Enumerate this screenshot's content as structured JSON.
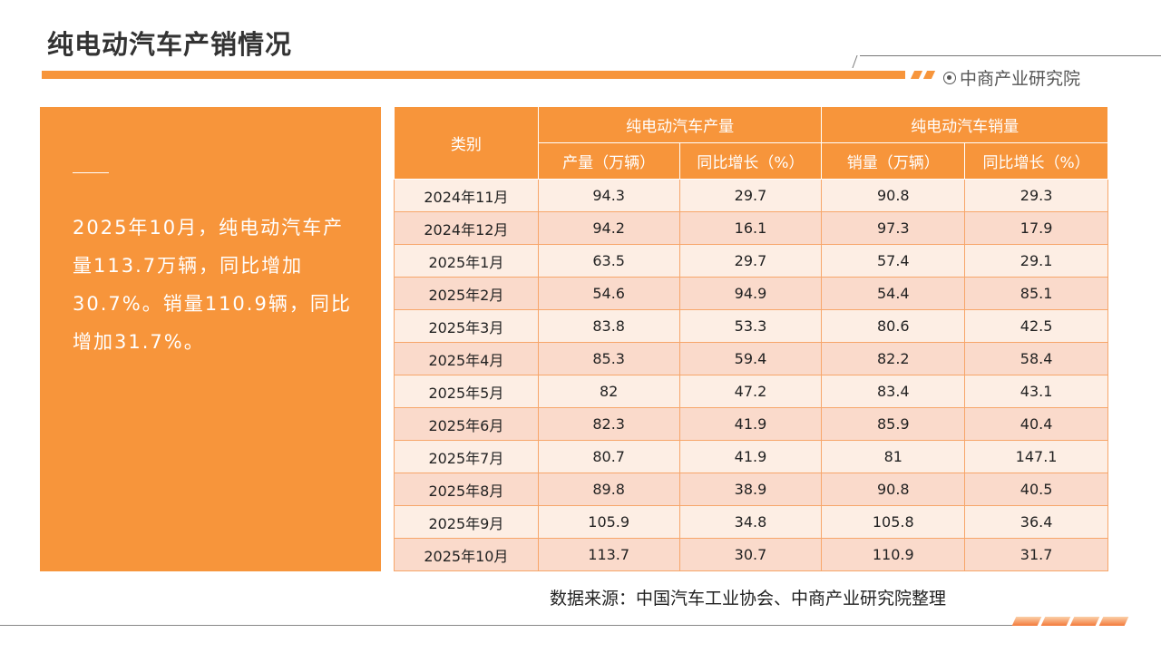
{
  "header": {
    "title": "纯电动汽车产销情况",
    "brand": "中商产业研究院"
  },
  "summary": {
    "text": "2025年10月，纯电动汽车产量113.7万辆，同比增加30.7%。销量110.9辆，同比增加31.7%。"
  },
  "table": {
    "category_header": "类别",
    "group_headers": [
      "纯电动汽车产量",
      "纯电动汽车销量"
    ],
    "sub_headers": [
      "产量（万辆）",
      "同比增长（%）",
      "销量（万辆）",
      "同比增长（%）"
    ],
    "rows": [
      [
        "2024年11月",
        "94.3",
        "29.7",
        "90.8",
        "29.3"
      ],
      [
        "2024年12月",
        "94.2",
        "16.1",
        "97.3",
        "17.9"
      ],
      [
        "2025年1月",
        "63.5",
        "29.7",
        "57.4",
        "29.1"
      ],
      [
        "2025年2月",
        "54.6",
        "94.9",
        "54.4",
        "85.1"
      ],
      [
        "2025年3月",
        "83.8",
        "53.3",
        "80.6",
        "42.5"
      ],
      [
        "2025年4月",
        "85.3",
        "59.4",
        "82.2",
        "58.4"
      ],
      [
        "2025年5月",
        "82",
        "47.2",
        "83.4",
        "43.1"
      ],
      [
        "2025年6月",
        "82.3",
        "41.9",
        "85.9",
        "40.4"
      ],
      [
        "2025年7月",
        "80.7",
        "41.9",
        "81",
        "147.1"
      ],
      [
        "2025年8月",
        "89.8",
        "38.9",
        "90.8",
        "40.5"
      ],
      [
        "2025年9月",
        "105.9",
        "34.8",
        "105.8",
        "36.4"
      ],
      [
        "2025年10月",
        "113.7",
        "30.7",
        "110.9",
        "31.7"
      ]
    ]
  },
  "footer": {
    "source": "数据来源：中国汽车工业协会、中商产业研究院整理"
  },
  "colors": {
    "accent": "#f7953b",
    "row_light": "#fdeee4",
    "row_dark": "#fadacb"
  }
}
